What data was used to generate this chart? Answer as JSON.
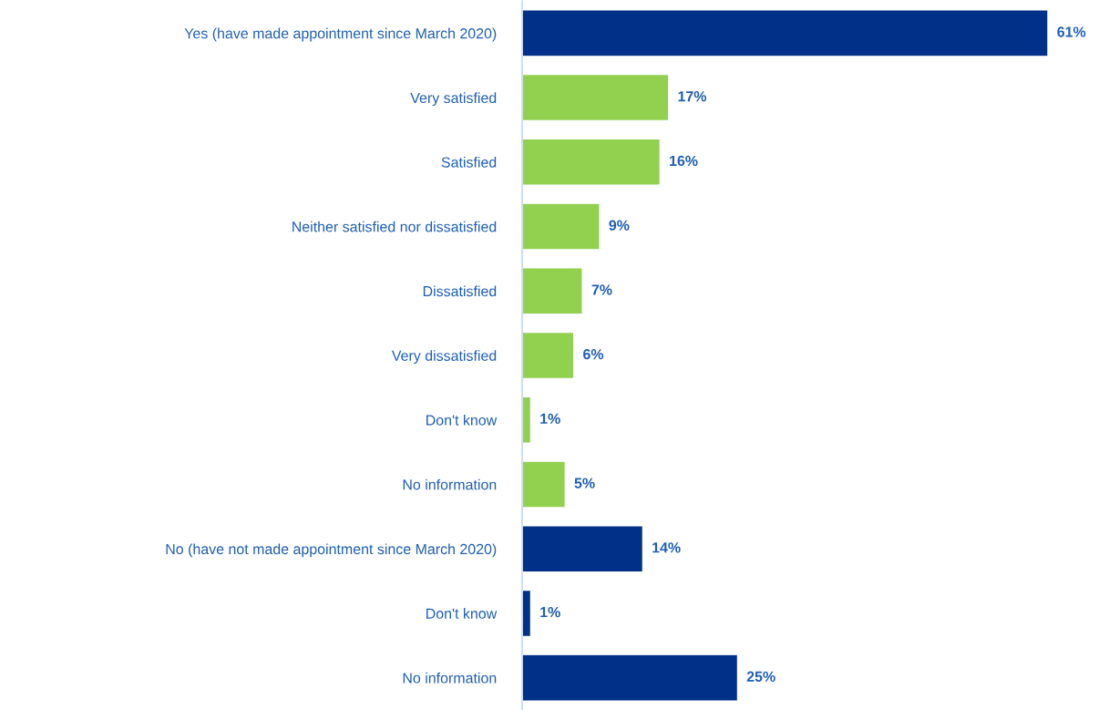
{
  "chart_data": {
    "type": "bar",
    "orientation": "horizontal",
    "categories": [
      "Yes (have made appointment since March 2020)",
      "Very satisfied",
      "Satisfied",
      "Neither satisfied nor dissatisfied",
      "Dissatisfied",
      "Very dissatisfied",
      "Don't know",
      "No information",
      "No (have not made appointment since March 2020)",
      "Don't know",
      "No information"
    ],
    "values": [
      61,
      17,
      16,
      9,
      7,
      6,
      1,
      5,
      14,
      1,
      25
    ],
    "colors": [
      "#003087",
      "#92d050",
      "#92d050",
      "#92d050",
      "#92d050",
      "#92d050",
      "#92d050",
      "#92d050",
      "#003087",
      "#003087",
      "#003087"
    ],
    "value_labels": [
      "61%",
      "17%",
      "16%",
      "9%",
      "7%",
      "6%",
      "1%",
      "5%",
      "14%",
      "1%",
      "25%"
    ],
    "grid": false,
    "legend": false
  }
}
